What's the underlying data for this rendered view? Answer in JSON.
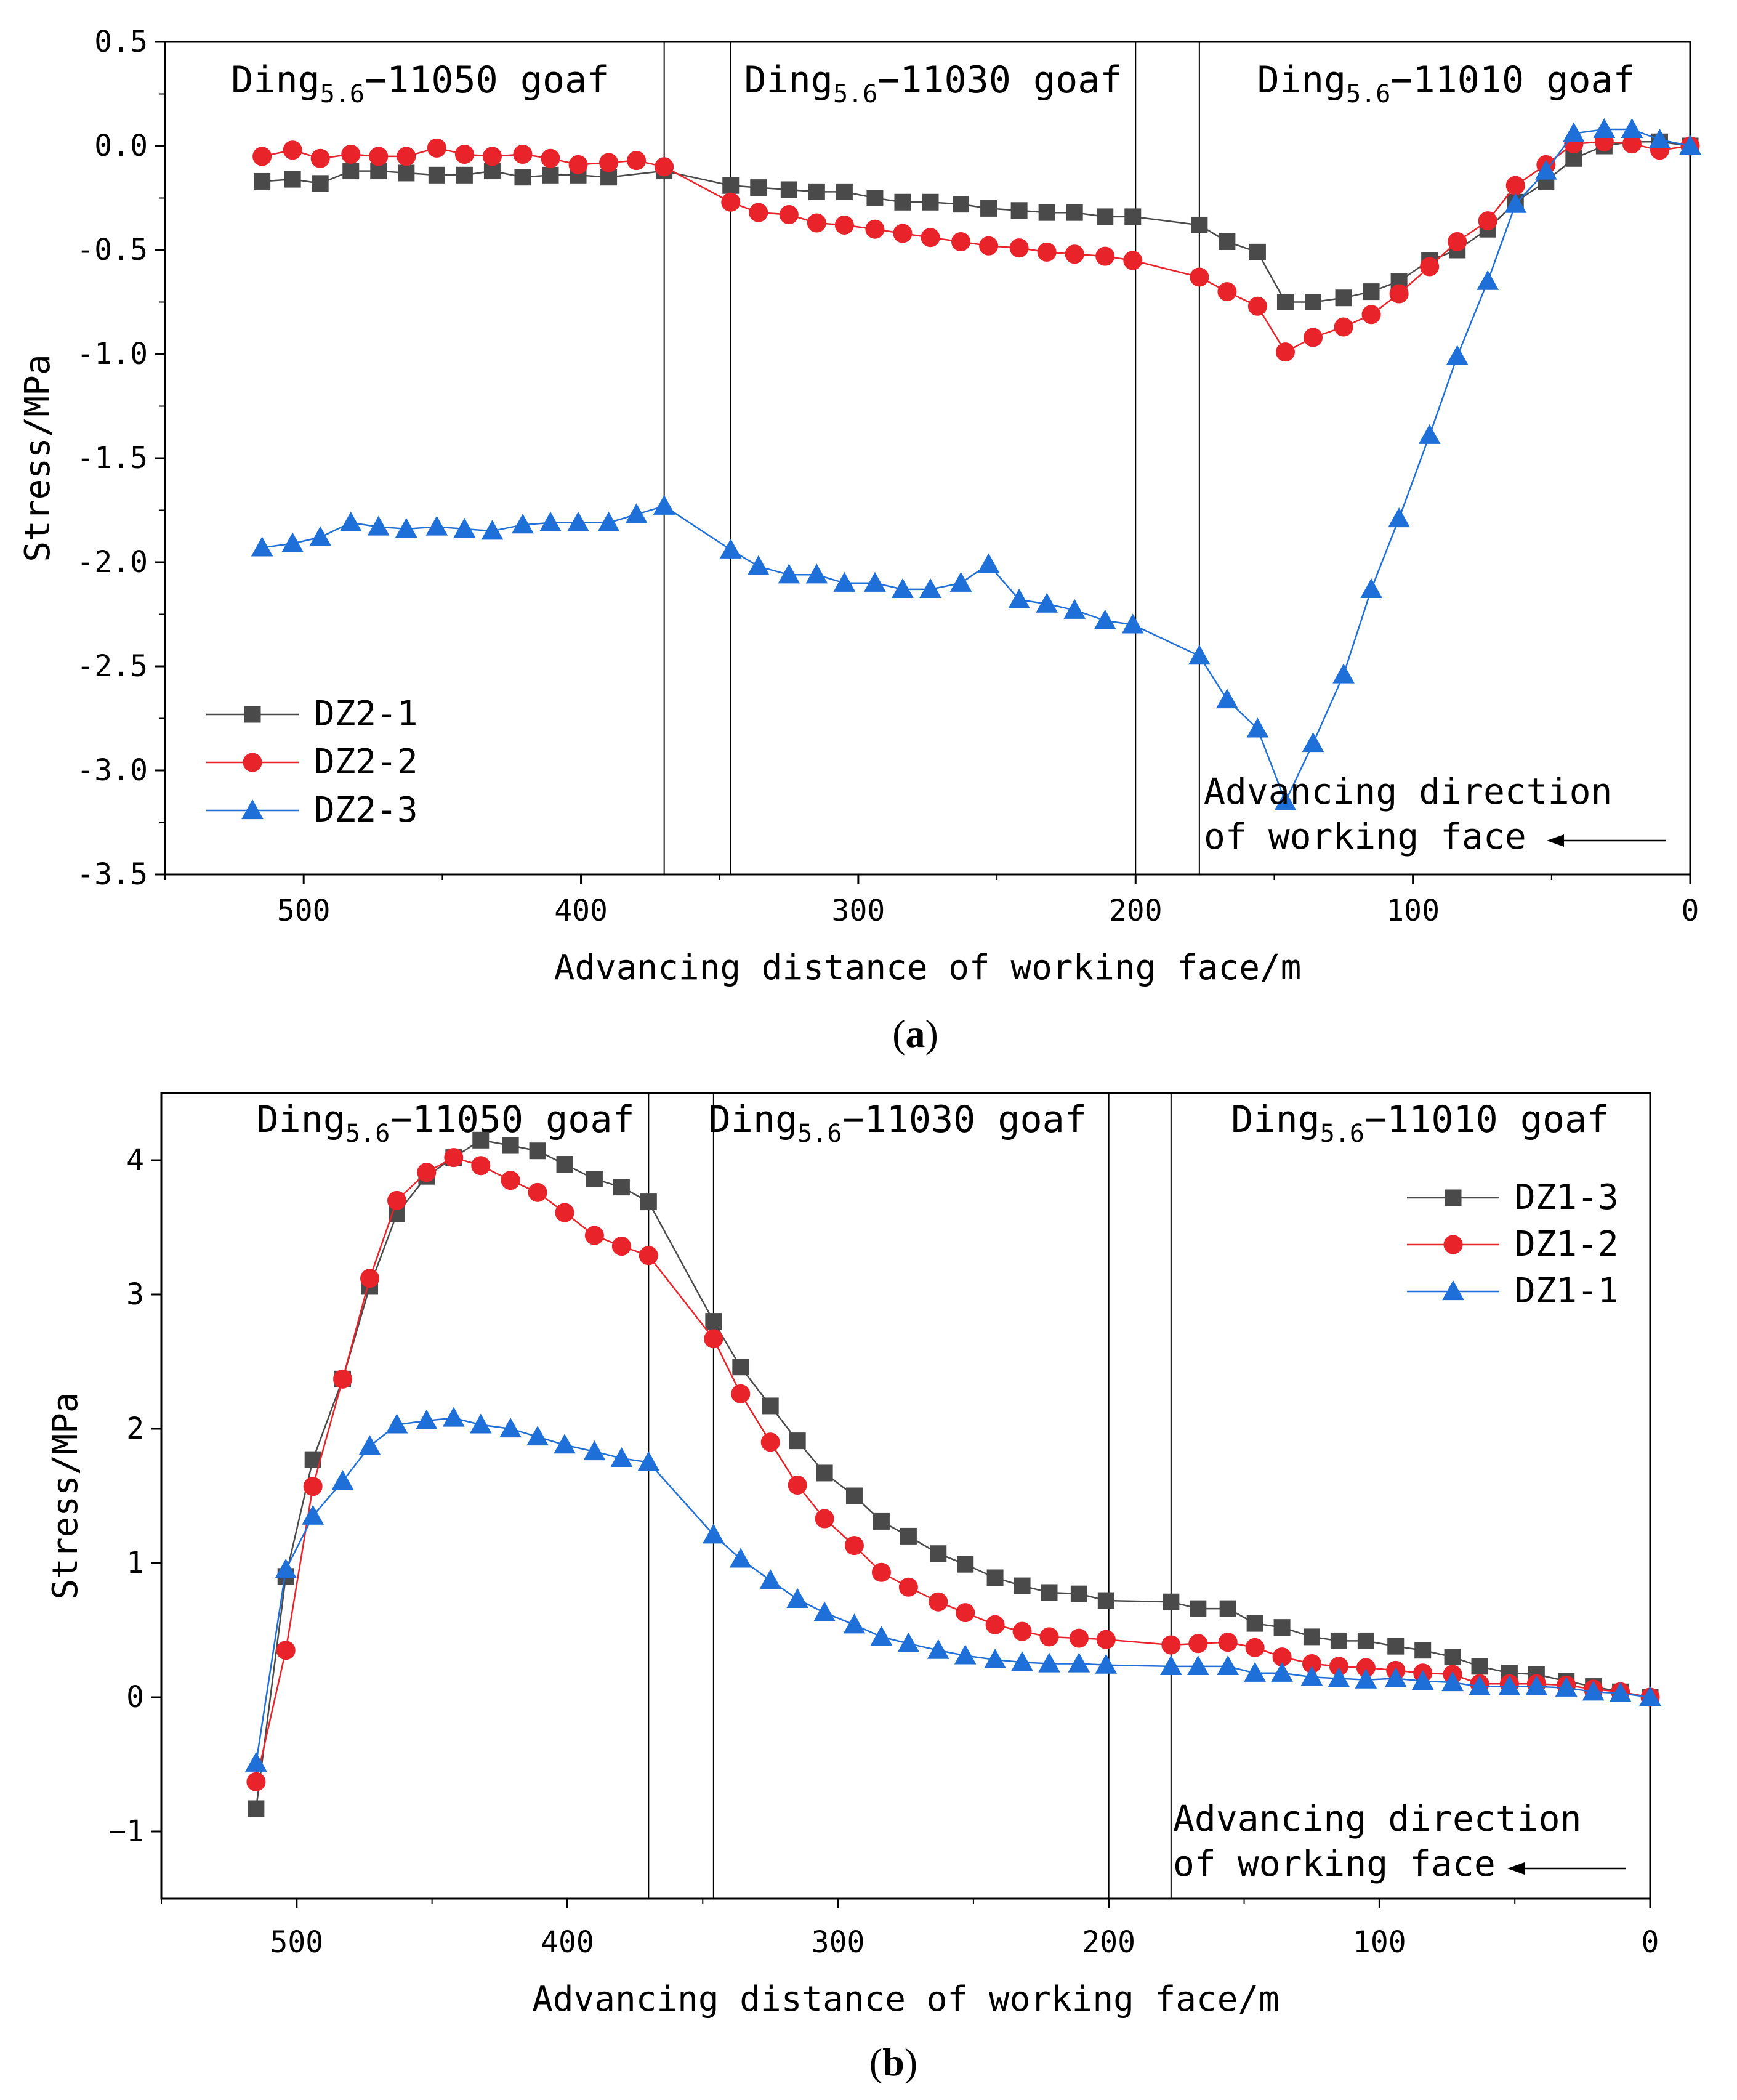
{
  "chart_data": [
    {
      "panel": "(a)",
      "panel_letter": "a",
      "type": "line",
      "xlabel": "Advancing distance of working face/m",
      "ylabel": "Stress/MPa",
      "xlim": [
        550,
        0
      ],
      "ylim": [
        -3.5,
        0.5
      ],
      "xticks": [
        500,
        400,
        300,
        200,
        100,
        0
      ],
      "yticks": [
        0.5,
        0.0,
        -0.5,
        -1.0,
        -1.5,
        -2.0,
        -2.5,
        -3.0,
        -3.5
      ],
      "ytick_labels": [
        "0.5",
        "0.0",
        "-0.5",
        "-1.0",
        "-1.5",
        "-2.0",
        "-2.5",
        "-3.0",
        "-3.5"
      ],
      "xtick_labels": [
        "500",
        "400",
        "300",
        "200",
        "100",
        "0"
      ],
      "vlines": [
        370,
        346,
        200,
        177
      ],
      "regions": [
        {
          "prefix": "Ding",
          "sub": "5.6",
          "suffix": "−11050 goaf",
          "x_center": 458
        },
        {
          "prefix": "Ding",
          "sub": "5.6",
          "suffix": "−11030 goaf",
          "x_center": 273
        },
        {
          "prefix": "Ding",
          "sub": "5.6",
          "suffix": "−11010 goaf",
          "x_center": 88
        }
      ],
      "annotation": {
        "line1": "Advancing direction",
        "line2": "of working face"
      },
      "legend": {
        "placement": "bottom-left"
      },
      "series": [
        {
          "name": "DZ2-1",
          "color": "#4a4a4a",
          "marker": "square",
          "x": [
            515,
            504,
            494,
            483,
            473,
            463,
            452,
            442,
            432,
            421,
            411,
            401,
            390,
            370,
            346,
            336,
            325,
            315,
            305,
            294,
            284,
            274,
            263,
            253,
            242,
            232,
            222,
            211,
            201,
            177,
            167,
            156,
            146,
            136,
            125,
            115,
            105,
            94,
            84,
            73,
            63,
            52,
            42,
            31,
            21,
            11,
            0
          ],
          "y": [
            -0.17,
            -0.16,
            -0.18,
            -0.12,
            -0.12,
            -0.13,
            -0.14,
            -0.14,
            -0.12,
            -0.15,
            -0.14,
            -0.14,
            -0.15,
            -0.12,
            -0.19,
            -0.2,
            -0.21,
            -0.22,
            -0.22,
            -0.25,
            -0.27,
            -0.27,
            -0.28,
            -0.3,
            -0.31,
            -0.32,
            -0.32,
            -0.34,
            -0.34,
            -0.38,
            -0.46,
            -0.51,
            -0.75,
            -0.75,
            -0.73,
            -0.7,
            -0.65,
            -0.55,
            -0.5,
            -0.4,
            -0.27,
            -0.17,
            -0.06,
            0.0,
            0.02,
            0.02,
            0.0
          ]
        },
        {
          "name": "DZ2-2",
          "color": "#e8232a",
          "marker": "circle",
          "x": [
            515,
            504,
            494,
            483,
            473,
            463,
            452,
            442,
            432,
            421,
            411,
            401,
            390,
            380,
            370,
            346,
            336,
            325,
            315,
            305,
            294,
            284,
            274,
            263,
            253,
            242,
            232,
            222,
            211,
            201,
            177,
            167,
            156,
            146,
            136,
            125,
            115,
            105,
            94,
            84,
            73,
            63,
            52,
            42,
            31,
            21,
            11,
            0
          ],
          "y": [
            -0.05,
            -0.02,
            -0.06,
            -0.04,
            -0.05,
            -0.05,
            -0.01,
            -0.04,
            -0.05,
            -0.04,
            -0.06,
            -0.09,
            -0.08,
            -0.07,
            -0.1,
            -0.27,
            -0.32,
            -0.33,
            -0.37,
            -0.38,
            -0.4,
            -0.42,
            -0.44,
            -0.46,
            -0.48,
            -0.49,
            -0.51,
            -0.52,
            -0.53,
            -0.55,
            -0.63,
            -0.7,
            -0.77,
            -0.99,
            -0.92,
            -0.87,
            -0.81,
            -0.71,
            -0.58,
            -0.46,
            -0.36,
            -0.19,
            -0.09,
            0.01,
            0.02,
            0.01,
            -0.02,
            0.0
          ]
        },
        {
          "name": "DZ2-3",
          "color": "#1f6fd8",
          "marker": "triangle",
          "x": [
            515,
            504,
            494,
            483,
            473,
            463,
            452,
            442,
            432,
            421,
            411,
            401,
            390,
            380,
            370,
            346,
            336,
            325,
            315,
            305,
            294,
            284,
            274,
            263,
            253,
            242,
            232,
            222,
            211,
            201,
            177,
            167,
            156,
            146,
            136,
            125,
            115,
            105,
            94,
            84,
            73,
            63,
            52,
            42,
            31,
            21,
            11,
            0
          ],
          "y": [
            -1.93,
            -1.91,
            -1.88,
            -1.81,
            -1.83,
            -1.84,
            -1.83,
            -1.84,
            -1.85,
            -1.82,
            -1.81,
            -1.81,
            -1.81,
            -1.77,
            -1.73,
            -1.94,
            -2.02,
            -2.06,
            -2.06,
            -2.1,
            -2.1,
            -2.13,
            -2.13,
            -2.1,
            -2.01,
            -2.18,
            -2.2,
            -2.23,
            -2.28,
            -2.3,
            -2.45,
            -2.66,
            -2.8,
            -3.15,
            -2.87,
            -2.54,
            -2.13,
            -1.79,
            -1.39,
            -1.01,
            -0.65,
            -0.28,
            -0.12,
            0.06,
            0.08,
            0.08,
            0.03,
            0.0
          ]
        }
      ]
    },
    {
      "panel": "(b)",
      "panel_letter": "b",
      "type": "line",
      "xlabel": "Advancing distance of working face/m",
      "ylabel": "Stress/MPa",
      "xlim": [
        550,
        0
      ],
      "ylim": [
        -1.5,
        4.5
      ],
      "xticks": [
        500,
        400,
        300,
        200,
        100,
        0
      ],
      "yticks": [
        4,
        3,
        2,
        1,
        0,
        -1
      ],
      "ytick_labels": [
        "4",
        "3",
        "2",
        "1",
        "0",
        "−1"
      ],
      "xtick_labels": [
        "500",
        "400",
        "300",
        "200",
        "100",
        "0"
      ],
      "vlines": [
        370,
        346,
        200,
        177
      ],
      "regions": [
        {
          "prefix": "Ding",
          "sub": "5.6",
          "suffix": "−11050 goaf",
          "x_center": 445
        },
        {
          "prefix": "Ding",
          "sub": "5.6",
          "suffix": "−11030 goaf",
          "x_center": 278
        },
        {
          "prefix": "Ding",
          "sub": "5.6",
          "suffix": "−11010 goaf",
          "x_center": 85
        }
      ],
      "annotation": {
        "line1": "Advancing direction",
        "line2": "of working face"
      },
      "legend": {
        "placement": "top-right"
      },
      "series": [
        {
          "name": "DZ1-3",
          "color": "#4a4a4a",
          "marker": "square",
          "x": [
            515,
            504,
            494,
            483,
            473,
            463,
            452,
            442,
            432,
            421,
            411,
            401,
            390,
            380,
            370,
            346,
            336,
            325,
            315,
            305,
            294,
            284,
            274,
            263,
            253,
            242,
            232,
            222,
            211,
            201,
            177,
            167,
            156,
            146,
            136,
            125,
            115,
            105,
            94,
            84,
            73,
            63,
            52,
            42,
            31,
            21,
            11,
            0
          ],
          "y": [
            -0.83,
            0.9,
            1.77,
            2.37,
            3.06,
            3.6,
            3.88,
            4.02,
            4.15,
            4.11,
            4.07,
            3.97,
            3.86,
            3.8,
            3.69,
            2.8,
            2.46,
            2.17,
            1.91,
            1.67,
            1.5,
            1.31,
            1.2,
            1.07,
            0.99,
            0.89,
            0.83,
            0.78,
            0.77,
            0.72,
            0.71,
            0.66,
            0.66,
            0.55,
            0.52,
            0.45,
            0.42,
            0.42,
            0.38,
            0.35,
            0.3,
            0.23,
            0.18,
            0.17,
            0.12,
            0.08,
            0.04,
            0.0
          ]
        },
        {
          "name": "DZ1-2",
          "color": "#e8232a",
          "marker": "circle",
          "x": [
            515,
            504,
            494,
            483,
            473,
            463,
            452,
            442,
            432,
            421,
            411,
            401,
            390,
            380,
            370,
            346,
            336,
            325,
            315,
            305,
            294,
            284,
            274,
            263,
            253,
            242,
            232,
            222,
            211,
            201,
            177,
            167,
            156,
            146,
            136,
            125,
            115,
            105,
            94,
            84,
            73,
            63,
            52,
            42,
            31,
            21,
            11,
            0
          ],
          "y": [
            -0.63,
            0.35,
            1.57,
            2.37,
            3.12,
            3.7,
            3.91,
            4.02,
            3.96,
            3.85,
            3.76,
            3.61,
            3.44,
            3.36,
            3.29,
            2.67,
            2.26,
            1.9,
            1.58,
            1.33,
            1.13,
            0.93,
            0.82,
            0.71,
            0.63,
            0.54,
            0.49,
            0.45,
            0.44,
            0.43,
            0.39,
            0.4,
            0.41,
            0.37,
            0.3,
            0.25,
            0.23,
            0.22,
            0.2,
            0.18,
            0.17,
            0.1,
            0.1,
            0.1,
            0.09,
            0.06,
            0.04,
            0.0
          ]
        },
        {
          "name": "DZ1-1",
          "color": "#1f6fd8",
          "marker": "triangle",
          "x": [
            515,
            504,
            494,
            483,
            473,
            463,
            452,
            442,
            432,
            421,
            411,
            401,
            390,
            380,
            370,
            346,
            336,
            325,
            315,
            305,
            294,
            284,
            274,
            263,
            253,
            242,
            232,
            222,
            211,
            201,
            177,
            167,
            156,
            146,
            136,
            125,
            115,
            105,
            94,
            84,
            73,
            63,
            52,
            42,
            31,
            21,
            11,
            0
          ],
          "y": [
            -0.49,
            0.95,
            1.35,
            1.61,
            1.87,
            2.03,
            2.06,
            2.08,
            2.03,
            2.0,
            1.94,
            1.88,
            1.83,
            1.78,
            1.75,
            1.21,
            1.03,
            0.87,
            0.73,
            0.63,
            0.54,
            0.45,
            0.4,
            0.35,
            0.31,
            0.28,
            0.26,
            0.25,
            0.25,
            0.24,
            0.23,
            0.23,
            0.23,
            0.18,
            0.18,
            0.15,
            0.14,
            0.13,
            0.14,
            0.12,
            0.11,
            0.08,
            0.08,
            0.08,
            0.07,
            0.04,
            0.03,
            0.0
          ]
        }
      ]
    }
  ]
}
